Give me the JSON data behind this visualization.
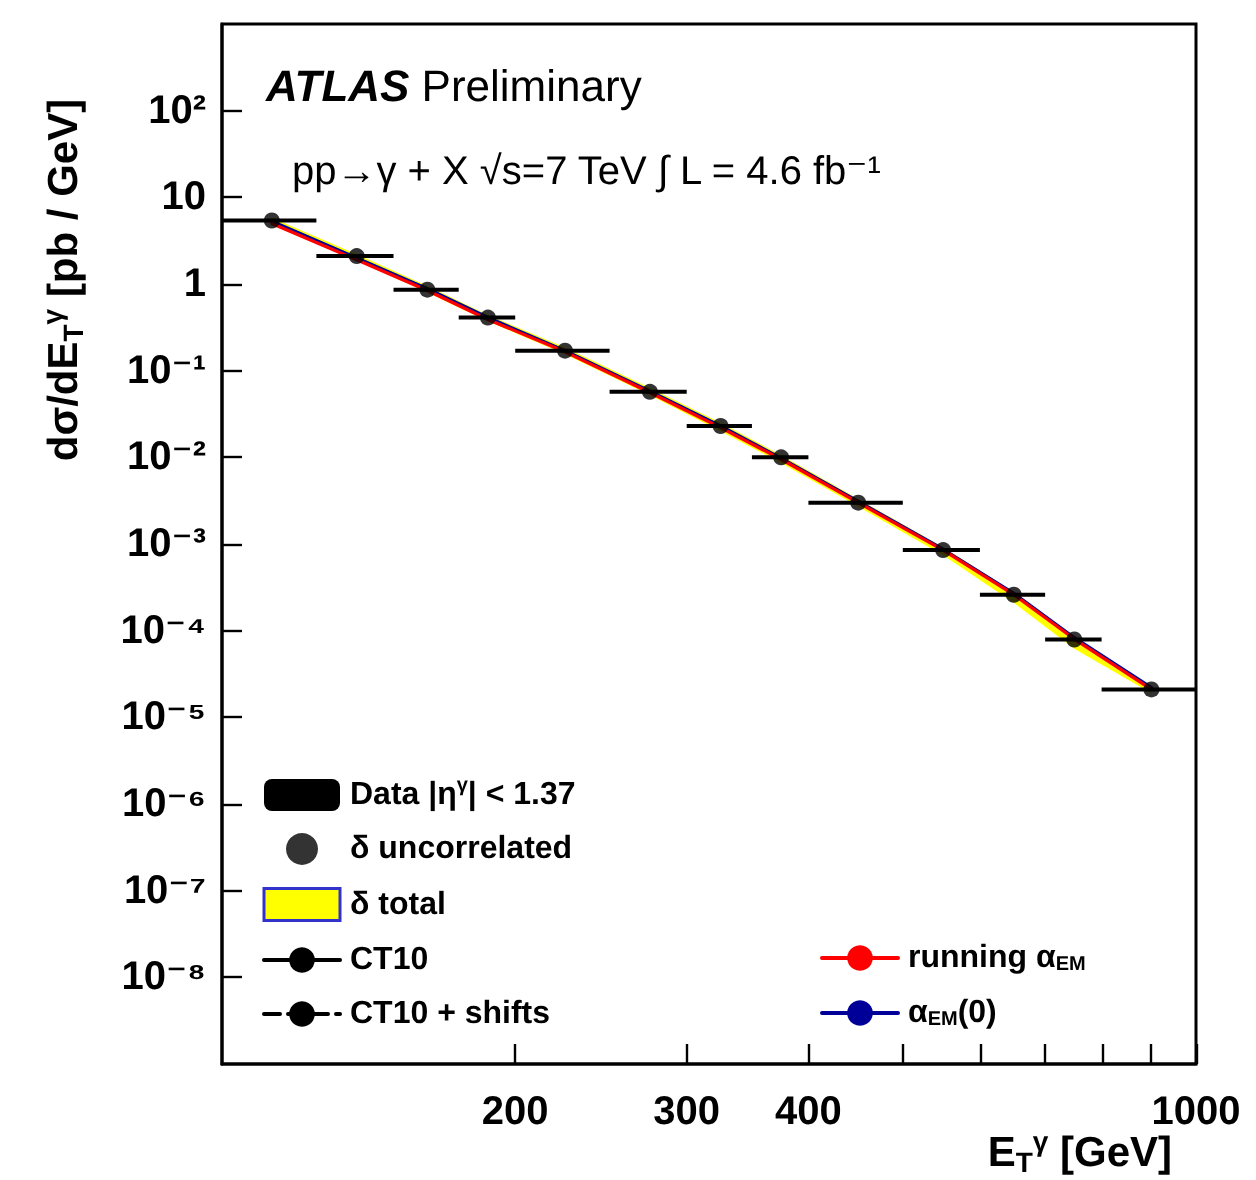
{
  "chart_data": {
    "type": "line",
    "xlabel": "E$_{T}$$^{γ}$ [GeV]",
    "ylabel": "dσ/dE$_{T}$$^{γ}$ [pb / GeV]",
    "annotations": [
      "ATLAS Preliminary",
      "pp→γ + X √s=7 TeV ∫ L = 4.6 fb⁻¹"
    ],
    "log": "xy",
    "xlim": [
      100,
      1000
    ],
    "xticks": [
      200,
      300,
      400,
      {
        "value": 500,
        "label": null
      },
      {
        "value": 600,
        "label": null
      },
      {
        "value": 700,
        "label": null
      },
      {
        "value": 800,
        "label": null
      },
      {
        "value": 900,
        "label": null
      },
      1000
    ],
    "ylim": [
      1e-09,
      1000
    ],
    "yticks": [
      {
        "value": 1e-08,
        "label": "10⁻⁸"
      },
      {
        "value": 1e-07,
        "label": "10⁻⁷"
      },
      {
        "value": 1e-06,
        "label": "10⁻⁶"
      },
      {
        "value": 1e-05,
        "label": "10⁻⁵"
      },
      {
        "value": 0.0001,
        "label": "10⁻⁴"
      },
      {
        "value": 0.001,
        "label": "10⁻³"
      },
      {
        "value": 0.01,
        "label": "10⁻²"
      },
      {
        "value": 0.1,
        "label": "10⁻¹"
      },
      1,
      10,
      {
        "value": 100,
        "label": "10²"
      }
    ],
    "grid": false,
    "legend": "bottom",
    "x": [
      112.5,
      137.5,
      162.5,
      187.5,
      225,
      275,
      325,
      375,
      450,
      550,
      650,
      750,
      900
    ],
    "series": [
      {
        "name": "δ total",
        "type": "area",
        "color": "#ffff00",
        "values": [
          null,
          null,
          null,
          null,
          null,
          null,
          null,
          null,
          null,
          null,
          null,
          null,
          null
        ],
        "lower": [
          4.8,
          1.85,
          0.8,
          0.37,
          0.155,
          0.052,
          0.02,
          0.0086,
          0.0027,
          0.00074,
          0.00021,
          6.2e-05,
          1.9e-05
        ],
        "upper": [
          5.8,
          2.2,
          0.95,
          0.44,
          0.185,
          0.063,
          0.025,
          0.0106,
          0.0033,
          0.00092,
          0.00028,
          8.6e-05,
          2.3e-05
        ]
      },
      {
        "name": "CT10",
        "type": "line",
        "color": "#000000",
        "line_style": "solid",
        "values": [
          null,
          null,
          null,
          null,
          null,
          null,
          null,
          null,
          null,
          null,
          null,
          null,
          null
        ]
      },
      {
        "name": "CT10 + shifts",
        "type": "line",
        "color": "#000000",
        "line_style": "dashed",
        "values": [
          null,
          null,
          null,
          null,
          null,
          null,
          null,
          null,
          null,
          null,
          null,
          null,
          null
        ]
      },
      {
        "name": "running α$_{EM}$",
        "type": "line",
        "color": "#ff0000",
        "line_style": "solid",
        "values": [
          5.0,
          1.9,
          0.84,
          0.39,
          0.165,
          0.056,
          0.022,
          0.0095,
          0.003,
          0.00085,
          0.00026,
          8e-05,
          2.1e-05
        ]
      },
      {
        "name": "α$_{EM}$(0)",
        "type": "line",
        "color": "#000099",
        "line_style": "solid",
        "values": [
          5.3,
          2.0,
          0.88,
          0.41,
          0.17,
          0.058,
          0.023,
          0.0098,
          0.0031,
          0.00087,
          0.00027,
          8.3e-05,
          2.2e-05
        ]
      },
      {
        "name": "δ uncorrelated",
        "type": "scatter",
        "color": "#000000",
        "marker": "circle",
        "values": [
          null,
          null,
          null,
          null,
          null,
          null,
          null,
          null,
          null,
          null,
          null,
          null,
          null
        ]
      },
      {
        "name": "Data |η$^{γ}$| < 1.37",
        "type": "scatter",
        "color": "#000000",
        "marker": "circle",
        "values": [
          5.4,
          2.1,
          0.86,
          0.41,
          0.17,
          0.057,
          0.023,
          0.01,
          0.003,
          0.00085,
          0.00026,
          7.9e-05,
          2.1e-05
        ],
        "xerrors": [
          12.5,
          12.5,
          12.5,
          12.5,
          25,
          25,
          25,
          25,
          50,
          50,
          50,
          50,
          100
        ]
      }
    ]
  }
}
